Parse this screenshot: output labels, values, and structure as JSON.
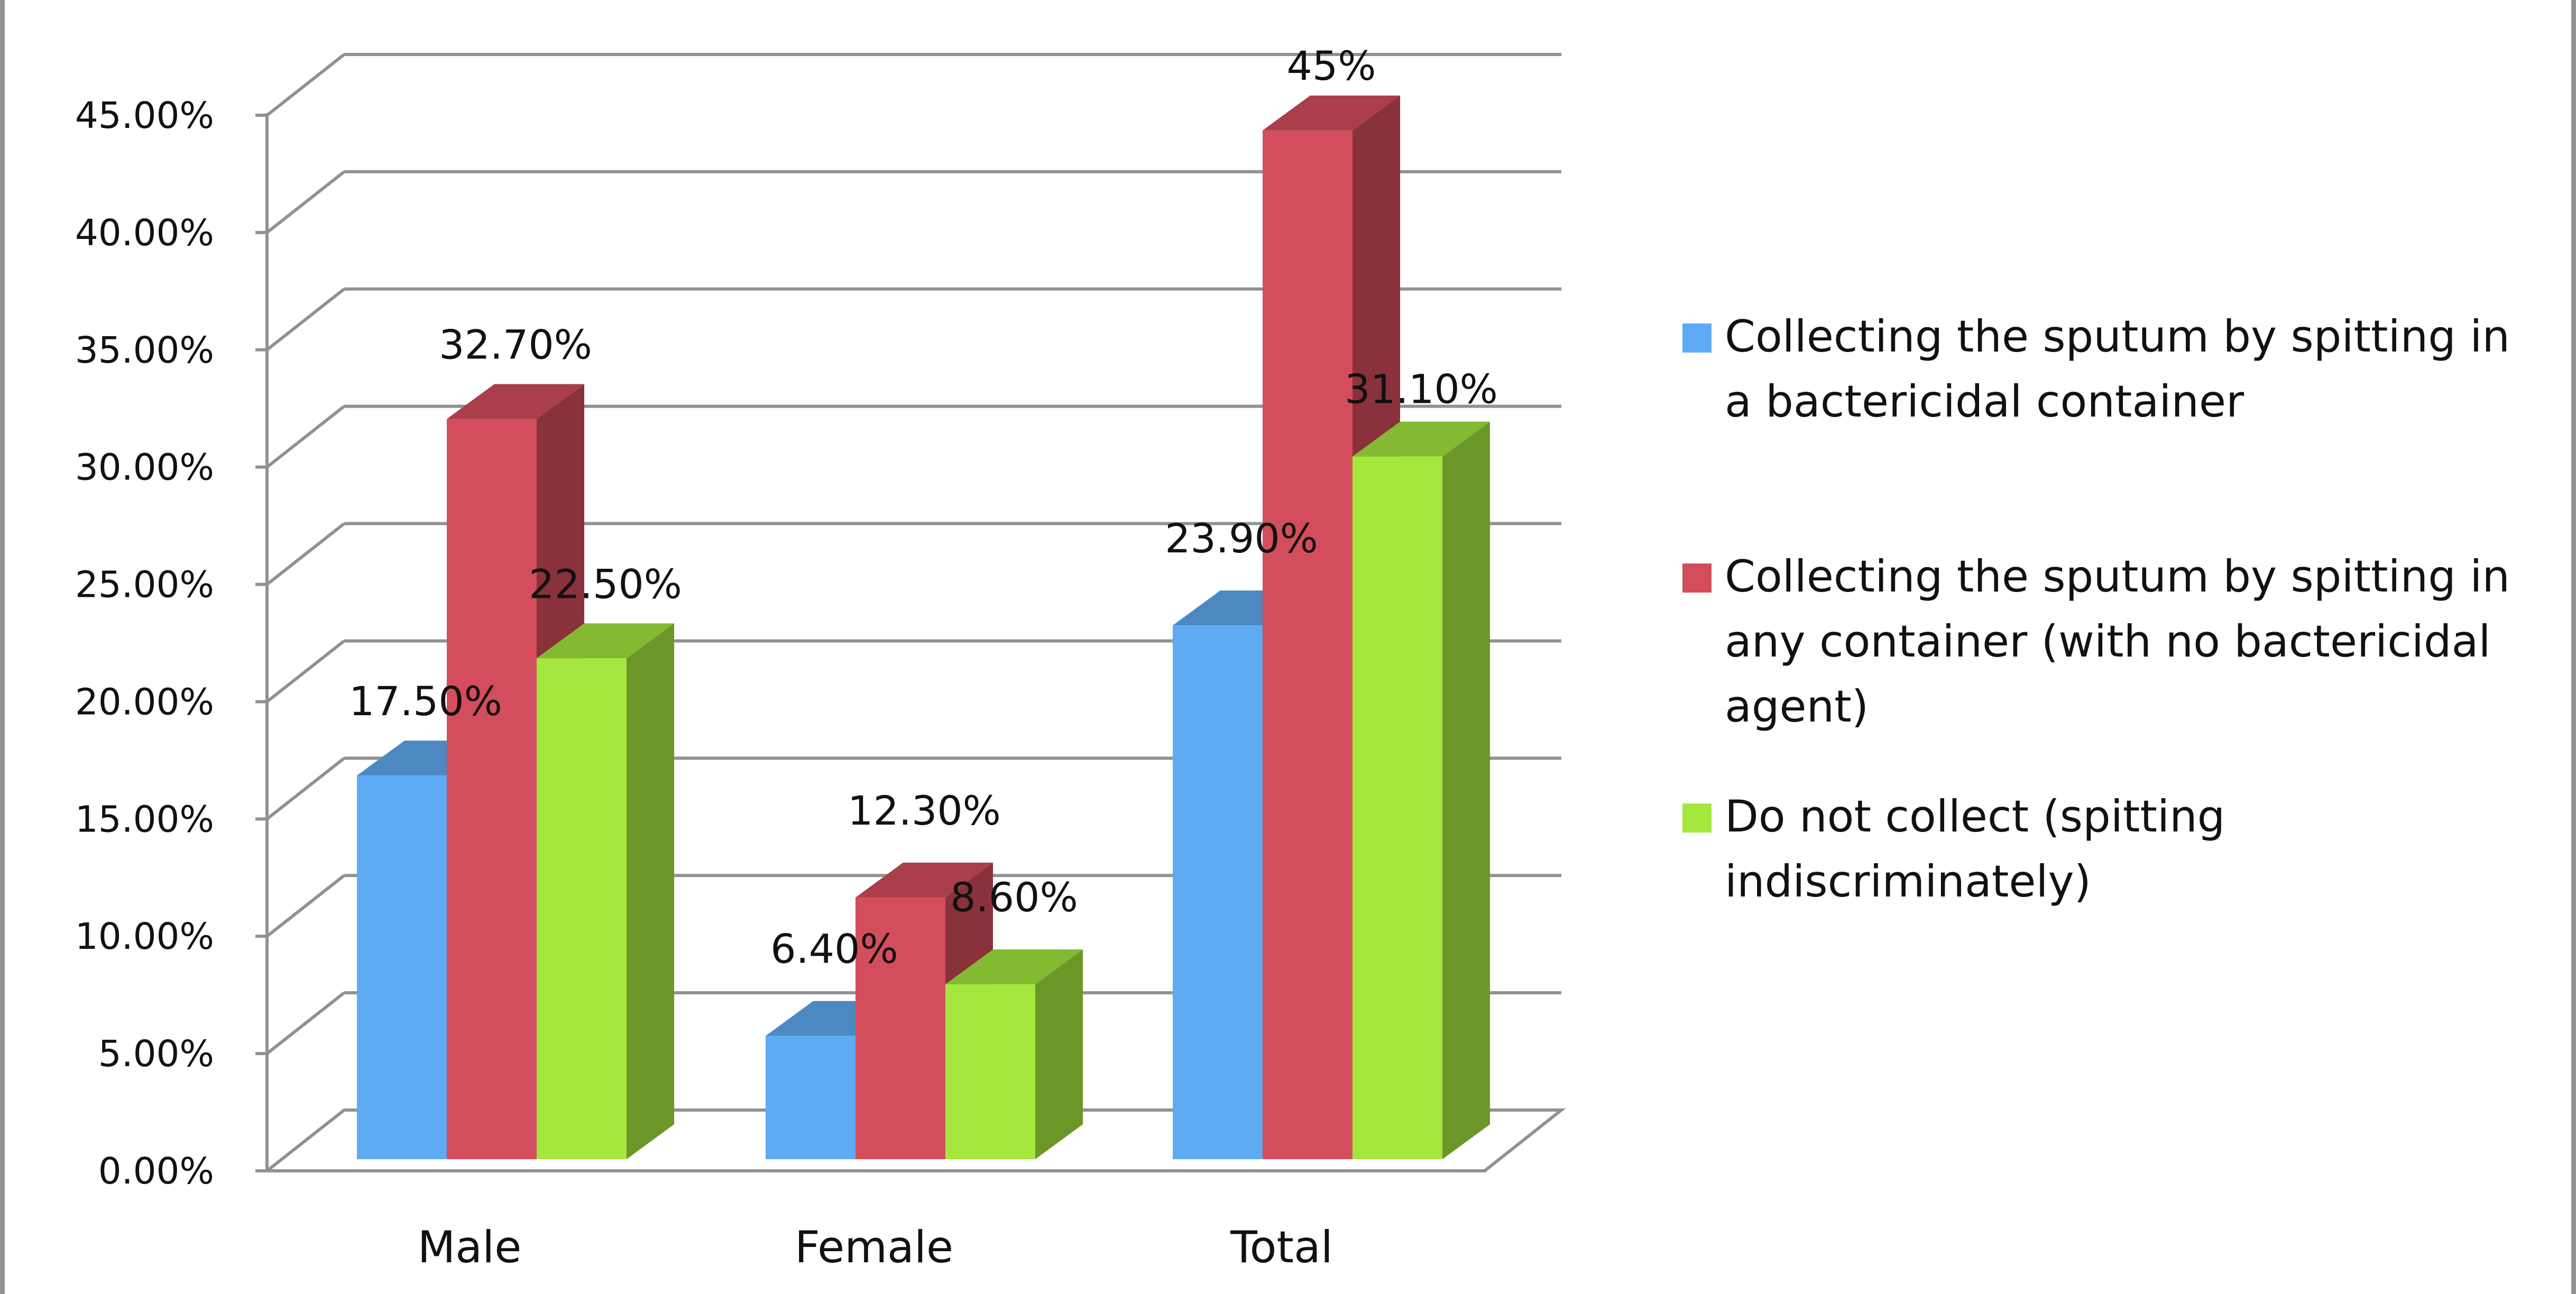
{
  "chart_data": {
    "type": "bar",
    "categories": [
      "Male",
      "Female",
      "Total"
    ],
    "series": [
      {
        "name": "Collecting the sputum by spitting in a bactericidal container",
        "legend_lines": [
          "Collecting the sputum by spitting in",
          "a bactericidal container"
        ],
        "color": "#5fabf3",
        "values": [
          17.5,
          6.4,
          23.9
        ],
        "labels": [
          "17.50%",
          "6.40%",
          "23.90%"
        ]
      },
      {
        "name": "Collecting the sputum by spitting in any container (with no bactericidal agent)",
        "legend_lines": [
          "Collecting the sputum by spitting in",
          "any container (with no bactericidal",
          "agent)"
        ],
        "color": "#d44d5c",
        "values": [
          32.7,
          12.3,
          45
        ],
        "labels": [
          "32.70%",
          "12.30%",
          "45%"
        ]
      },
      {
        "name": "Do not collect (spitting indiscriminately)",
        "legend_lines": [
          "Do not collect (spitting",
          "indiscriminately)"
        ],
        "color": "#a4e83f",
        "values": [
          22.5,
          8.6,
          31.1
        ],
        "labels": [
          "22.50%",
          "8.60%",
          "31.10%"
        ]
      }
    ],
    "y_ticks": [
      "0.00%",
      "5.00%",
      "10.00%",
      "15.00%",
      "20.00%",
      "25.00%",
      "30.00%",
      "35.00%",
      "40.00%",
      "45.00%"
    ],
    "ylim": [
      0,
      45
    ],
    "grid": true,
    "legend_position": "right",
    "title": "",
    "xlabel": "",
    "ylabel": ""
  }
}
